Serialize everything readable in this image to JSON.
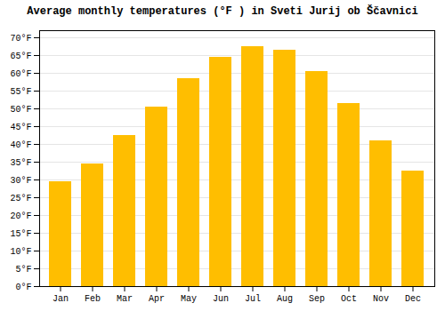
{
  "chart_data": {
    "type": "bar",
    "title": "Average monthly temperatures (°F ) in Sveti Jurij ob Ščavnici",
    "categories": [
      "Jan",
      "Feb",
      "Mar",
      "Apr",
      "May",
      "Jun",
      "Jul",
      "Aug",
      "Sep",
      "Oct",
      "Nov",
      "Dec"
    ],
    "values": [
      29.5,
      34.5,
      42.5,
      50.5,
      58.5,
      64.5,
      67.5,
      66.5,
      60.5,
      51.5,
      41.0,
      32.5
    ],
    "color": "#FFBE00",
    "ylim": [
      0,
      72
    ],
    "yticks": [
      {
        "value": 0,
        "label": "0°F"
      },
      {
        "value": 5,
        "label": "5°F"
      },
      {
        "value": 10,
        "label": "10°F"
      },
      {
        "value": 15,
        "label": "15°F"
      },
      {
        "value": 20,
        "label": "20°F"
      },
      {
        "value": 25,
        "label": "25°F"
      },
      {
        "value": 30,
        "label": "30°F"
      },
      {
        "value": 35,
        "label": "35°F"
      },
      {
        "value": 40,
        "label": "40°F"
      },
      {
        "value": 45,
        "label": "45°F"
      },
      {
        "value": 50,
        "label": "50°F"
      },
      {
        "value": 55,
        "label": "55°F"
      },
      {
        "value": 60,
        "label": "60°F"
      },
      {
        "value": 65,
        "label": "65°F"
      },
      {
        "value": 70,
        "label": "70°F"
      }
    ],
    "grid": true
  }
}
